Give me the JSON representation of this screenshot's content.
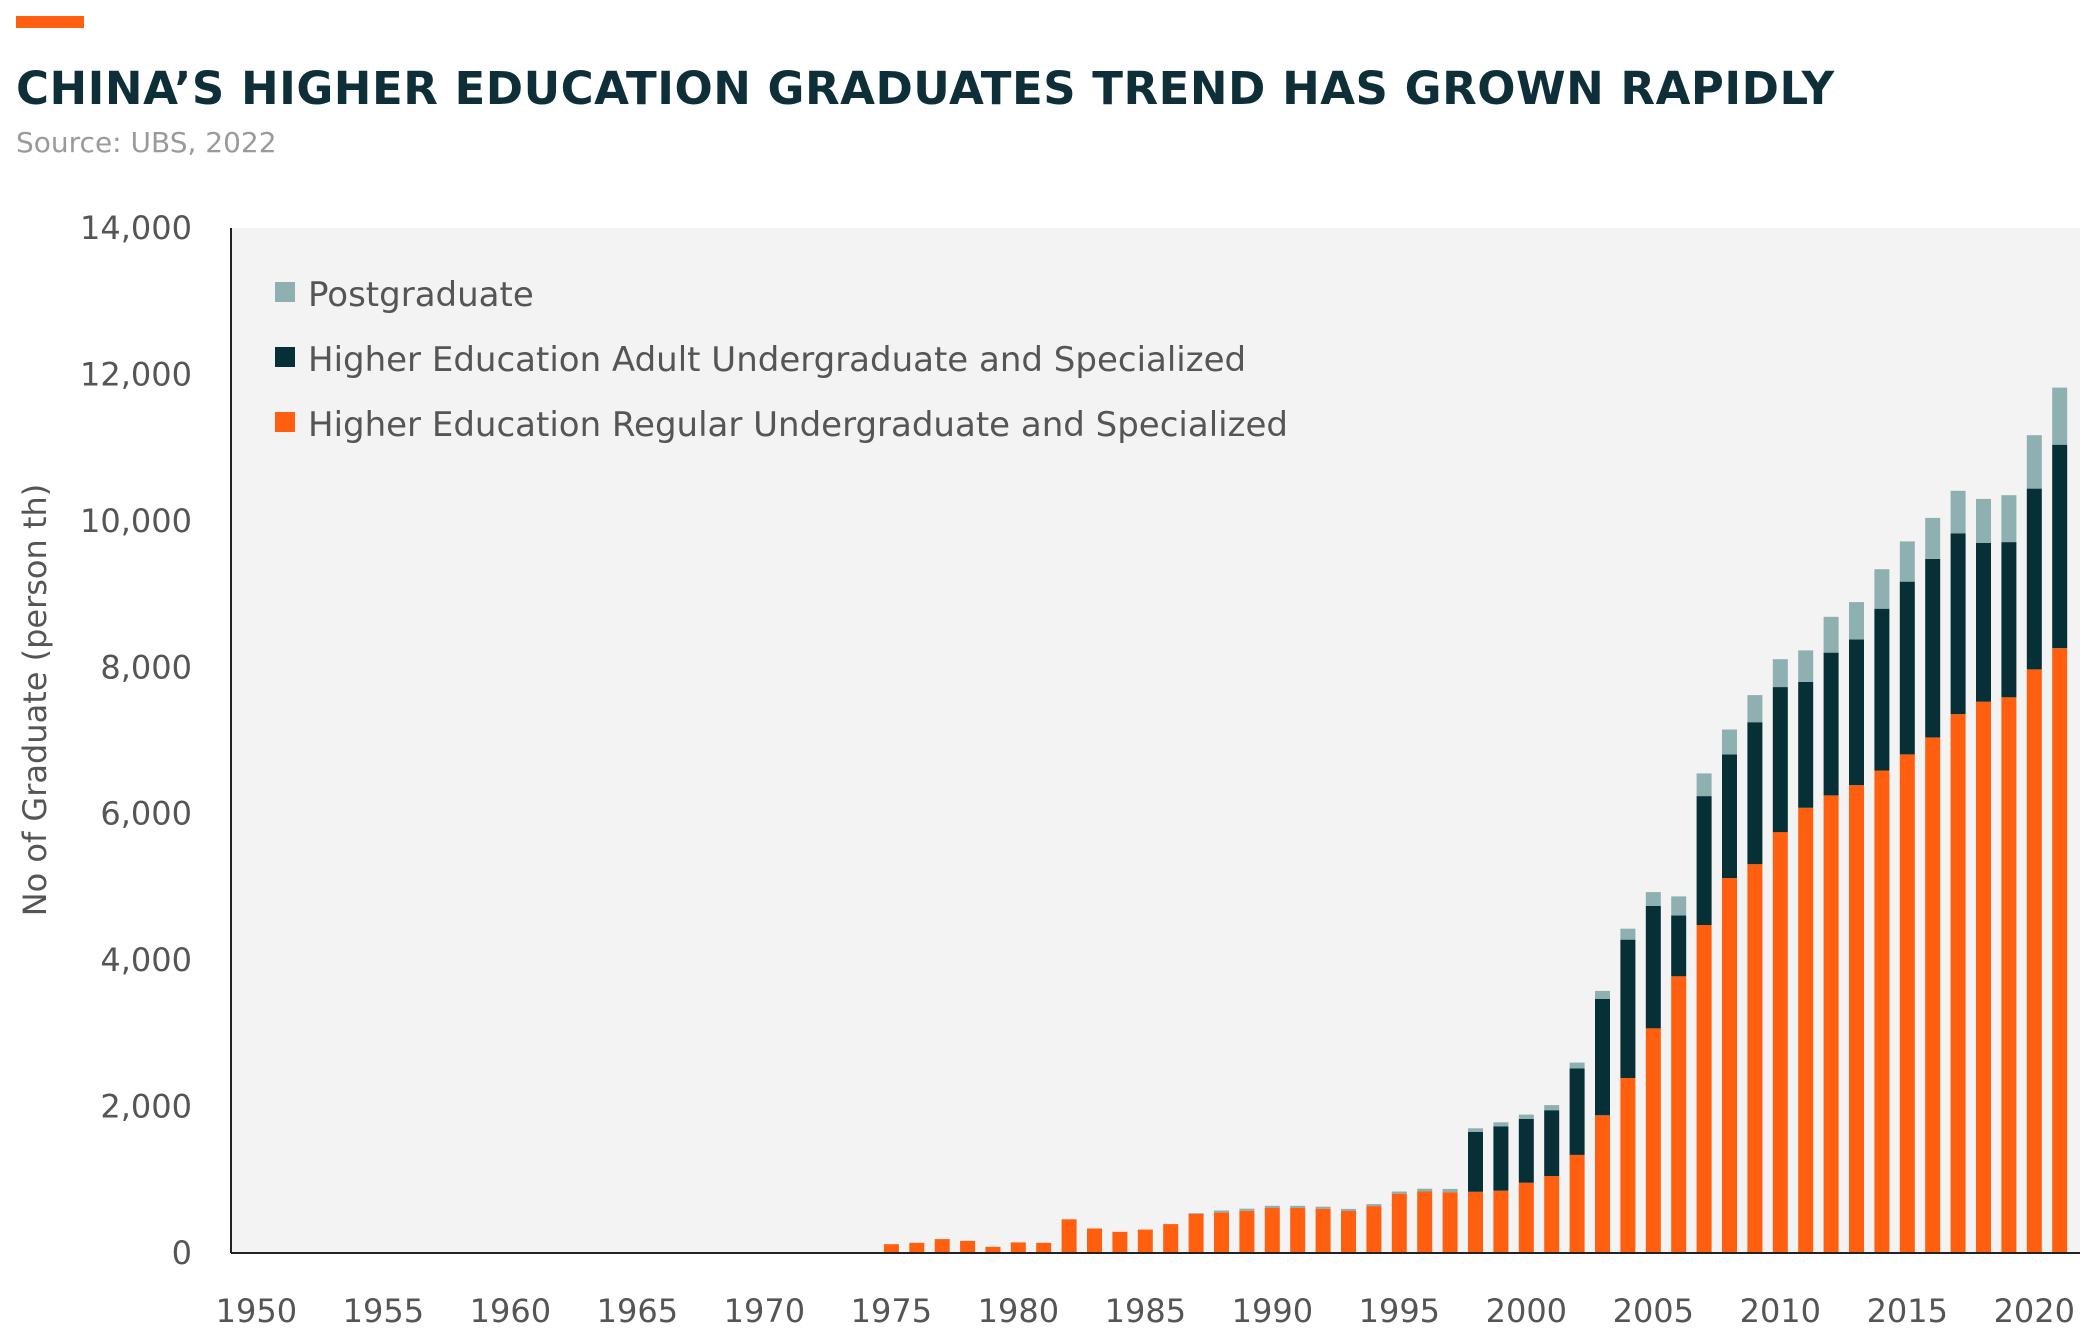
{
  "header": {
    "title": "CHINA’S HIGHER EDUCATION GRADUATES TREND HAS GROWN RAPIDLY",
    "subtitle": "Source: UBS, 2022"
  },
  "colors": {
    "accent": "#FF5F0F",
    "regular": "#FF5F0F",
    "adult": "#062F36",
    "postgraduate": "#8FB0B0",
    "plot_background": "#F3F3F3"
  },
  "chart_data": {
    "type": "bar",
    "stacked": true,
    "ylabel": "No of Graduate (person th)",
    "xlim": [
      1950,
      2021
    ],
    "ylim": [
      0,
      14000
    ],
    "yticks": [
      0,
      2000,
      4000,
      6000,
      8000,
      10000,
      12000,
      14000
    ],
    "ytick_labels": [
      "0",
      "2,000",
      "4,000",
      "6,000",
      "8,000",
      "10,000",
      "12,000",
      "14,000"
    ],
    "xticks": [
      1950,
      1955,
      1960,
      1965,
      1970,
      1975,
      1980,
      1985,
      1990,
      1995,
      2000,
      2005,
      2010,
      2015,
      2020
    ],
    "xtick_labels": [
      "1950",
      "1955",
      "1960",
      "1965",
      "1970",
      "1975",
      "1980",
      "1985",
      "1990",
      "1995",
      "2000",
      "2005",
      "2010",
      "2015",
      "2020"
    ],
    "grid": false,
    "legend_position": "top-left",
    "legend_order": [
      "Postgraduate",
      "Higher Education Adult Undergraduate and Specialized",
      "Higher Education Regular Undergraduate and Specialized"
    ],
    "x": [
      1975,
      1976,
      1977,
      1978,
      1979,
      1980,
      1981,
      1982,
      1983,
      1984,
      1985,
      1986,
      1987,
      1988,
      1989,
      1990,
      1991,
      1992,
      1993,
      1994,
      1995,
      1996,
      1997,
      1998,
      1999,
      2000,
      2001,
      2002,
      2003,
      2004,
      2005,
      2006,
      2007,
      2008,
      2009,
      2010,
      2011,
      2012,
      2013,
      2014,
      2015,
      2016,
      2017,
      2018,
      2019,
      2020,
      2021
    ],
    "series": [
      {
        "name": "Higher Education Regular Undergraduate and Specialized",
        "color": "#FF5F0F",
        "values": [
          120,
          140,
          190,
          165,
          85,
          145,
          140,
          460,
          335,
          290,
          320,
          395,
          535,
          555,
          575,
          615,
          615,
          605,
          575,
          640,
          810,
          840,
          830,
          835,
          850,
          960,
          1050,
          1340,
          1880,
          2390,
          3070,
          3780,
          4480,
          5120,
          5310,
          5750,
          6080,
          6250,
          6390,
          6590,
          6810,
          7040,
          7360,
          7530,
          7590,
          7970,
          8260
        ]
      },
      {
        "name": "Higher Education Adult Undergraduate and Specialized",
        "color": "#062F36",
        "values": [
          0,
          0,
          0,
          0,
          0,
          0,
          0,
          0,
          0,
          0,
          0,
          0,
          0,
          0,
          0,
          0,
          0,
          0,
          0,
          0,
          0,
          0,
          0,
          820,
          880,
          870,
          900,
          1180,
          1590,
          1890,
          1670,
          830,
          1760,
          1690,
          1940,
          1980,
          1720,
          1950,
          1990,
          2210,
          2360,
          2440,
          2470,
          2170,
          2120,
          2470,
          2780
        ]
      },
      {
        "name": "Postgraduate",
        "color": "#8FB0B0",
        "values": [
          0,
          0,
          0,
          0,
          0,
          0,
          0,
          0,
          0,
          0,
          0,
          0,
          10,
          25,
          30,
          30,
          30,
          28,
          28,
          28,
          30,
          38,
          45,
          48,
          55,
          60,
          70,
          80,
          110,
          150,
          190,
          260,
          310,
          340,
          370,
          380,
          430,
          490,
          510,
          540,
          550,
          560,
          580,
          600,
          640,
          730,
          780
        ]
      }
    ]
  }
}
